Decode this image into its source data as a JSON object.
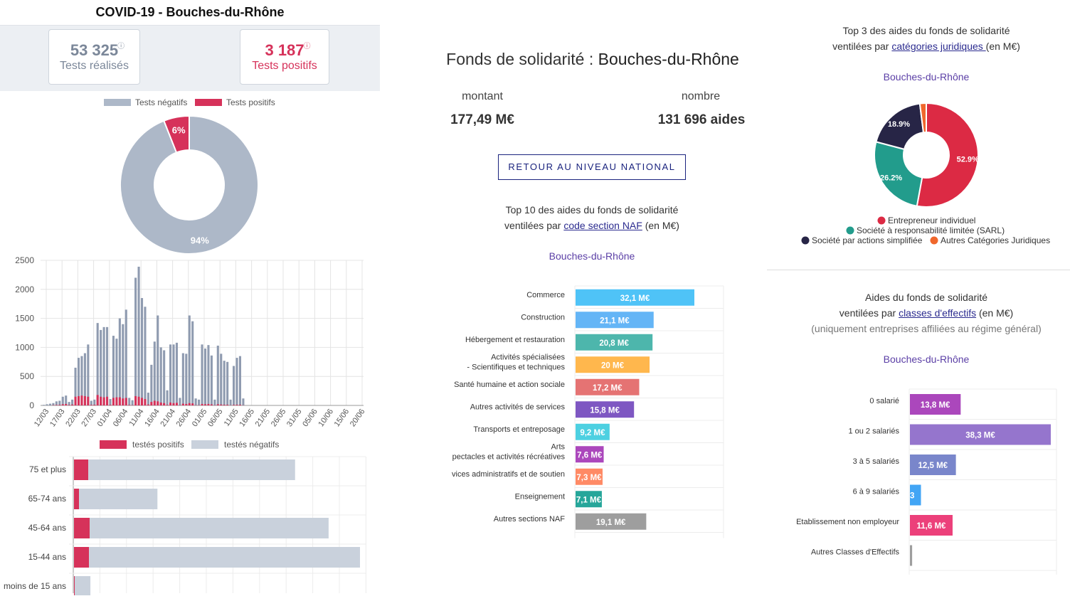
{
  "left": {
    "title": "COVID-19 - Bouches-du-Rhône",
    "kpi_tests": {
      "value": "53 325",
      "label": "Tests réalisés",
      "info": "ⓘ"
    },
    "kpi_positive": {
      "value": "3 187",
      "label": "Tests positifs",
      "info": "ⓘ"
    },
    "colors": {
      "neg": "#adb8c8",
      "pos": "#d6325a",
      "neg_light": "#c9d1dc"
    }
  },
  "middle": {
    "title_prefix": "Fonds de solidarité : ",
    "title_dept": "Bouches-du-Rhône",
    "montant_label": "montant",
    "montant_value": "177,49 M€",
    "nombre_label": "nombre",
    "nombre_value": "131 696 aides",
    "return_button": "RETOUR AU NIVEAU NATIONAL",
    "top10_line1": "Top 10 des aides du fonds de solidarité",
    "top10_line2_pre": "ventilées par ",
    "top10_link": "code section NAF",
    "top10_line2_post": " (en M€)",
    "dept_label": "Bouches-du-Rhône"
  },
  "right": {
    "top3_line1": "Top 3 des aides du fonds de solidarité",
    "top3_line2_pre": "ventilées par ",
    "top3_link": "catégories juridiques ",
    "top3_line2_post": "(en M€)",
    "dept_label_1": "Bouches-du-Rhône",
    "eff_line1": "Aides du fonds de solidarité",
    "eff_line2_pre": "ventilées par ",
    "eff_link": "classes d'effectifs",
    "eff_line2_post": " (en M€)",
    "eff_line3": "(uniquement entreprises affiliées au régime général)",
    "dept_label_2": "Bouches-du-Rhône"
  },
  "chart_data": [
    {
      "type": "pie",
      "id": "tests-donut",
      "legend": [
        "Tests négatifs",
        "Tests positifs"
      ],
      "values": [
        94,
        6
      ],
      "labels": [
        "94%",
        "6%"
      ],
      "colors": [
        "#adb8c8",
        "#d6325a"
      ]
    },
    {
      "type": "bar",
      "id": "daily-tests",
      "ylim": [
        0,
        2500
      ],
      "yticks": [
        "0",
        "500",
        "1000",
        "1500",
        "2000",
        "2500"
      ],
      "xticks": [
        "12/03",
        "17/03",
        "22/03",
        "27/03",
        "01/04",
        "06/04",
        "11/04",
        "16/04",
        "21/04",
        "26/04",
        "01/05",
        "06/05",
        "11/05",
        "16/05",
        "21/05",
        "26/05",
        "31/05",
        "05/06",
        "10/06",
        "15/06",
        "20/06"
      ],
      "series": [
        {
          "name": "Tests négatifs",
          "color": "#8f9bb0",
          "values": [
            10,
            20,
            30,
            40,
            70,
            80,
            150,
            170,
            60,
            100,
            650,
            820,
            850,
            900,
            1050,
            80,
            100,
            1420,
            1300,
            1350,
            1350,
            110,
            1200,
            1150,
            1500,
            1400,
            1650,
            130,
            90,
            2200,
            2390,
            1850,
            1700,
            220,
            700,
            1100,
            1550,
            1000,
            950,
            260,
            1050,
            1050,
            1080,
            130,
            900,
            890,
            1550,
            1450,
            120,
            100,
            1050,
            980,
            1040,
            860,
            100,
            1030,
            890,
            770,
            750,
            100,
            680,
            820,
            850,
            120
          ]
        },
        {
          "name": "Tests positifs",
          "color": "#d6325a",
          "values": [
            0,
            0,
            0,
            5,
            8,
            10,
            20,
            25,
            8,
            15,
            150,
            160,
            170,
            160,
            150,
            10,
            12,
            180,
            150,
            140,
            150,
            10,
            130,
            140,
            140,
            120,
            130,
            8,
            5,
            160,
            150,
            130,
            110,
            15,
            60,
            80,
            70,
            50,
            40,
            10,
            50,
            40,
            45,
            5,
            30,
            25,
            40,
            35,
            4,
            4,
            25,
            20,
            25,
            18,
            4,
            20,
            15,
            12,
            12,
            3,
            10,
            12,
            12,
            3
          ]
        }
      ]
    },
    {
      "type": "bar",
      "id": "age-tests",
      "legend": [
        "testés positifs",
        "testés négatifs"
      ],
      "categories": [
        "75 et plus",
        "65-74 ans",
        "45-64 ans",
        "15-44 ans",
        "moins de 15 ans"
      ],
      "series": [
        {
          "name": "testés positifs",
          "values": [
            20,
            7,
            22,
            21,
            1
          ],
          "color": "#d6325a"
        },
        {
          "name": "testés négatifs",
          "values": [
            290,
            110,
            335,
            380,
            22
          ],
          "color": "#c9d1dc"
        }
      ]
    },
    {
      "type": "bar",
      "id": "naf-top10",
      "categories": [
        [
          "Commerce"
        ],
        [
          "Construction"
        ],
        [
          "Hébergement et restauration"
        ],
        [
          "Activités spécialisées",
          "- Scientifiques et techniques"
        ],
        [
          "Santé humaine et action sociale"
        ],
        [
          "Autres activités de services"
        ],
        [
          "Transports et entreposage"
        ],
        [
          "Arts",
          "pectacles et activités récréatives"
        ],
        [
          "vices administratifs et de soutien"
        ],
        [
          "Enseignement"
        ],
        [
          "Autres sections NAF"
        ]
      ],
      "values": [
        32.1,
        21.1,
        20.8,
        20,
        17.2,
        15.8,
        9.2,
        7.6,
        7.3,
        7.1,
        19.1
      ],
      "labels": [
        "32,1 M€",
        "21,1 M€",
        "20,8 M€",
        "20 M€",
        "17,2 M€",
        "15,8 M€",
        "9,2 M€",
        "7,6 M€",
        "7,3 M€",
        "7,1 M€",
        "19,1 M€"
      ],
      "colors": [
        "#4fc3f7",
        "#64b5f6",
        "#4db6ac",
        "#ffb74d",
        "#e57373",
        "#7e57c2",
        "#4dd0e1",
        "#ab47bc",
        "#ff8a65",
        "#26a69a",
        "#9e9e9e"
      ]
    },
    {
      "type": "pie",
      "id": "juridique-donut",
      "values": [
        52.9,
        26.2,
        18.9,
        2.0
      ],
      "labels": [
        "52.9%",
        "26.2%",
        "18.9%",
        ""
      ],
      "legend": [
        "Entrepreneur individuel",
        "Société à responsabilité limitée (SARL)",
        "Société par actions simplifiée",
        "Autres Catégories Juridiques"
      ],
      "colors": [
        "#dc2a44",
        "#229c8c",
        "#272546",
        "#f0672c"
      ]
    },
    {
      "type": "bar",
      "id": "effectifs",
      "categories": [
        "0 salarié",
        "1 ou 2 salariés",
        "3 à 5 salariés",
        "6 à 9 salariés",
        "Etablissement non employeur",
        "Autres Classes d'Effectifs"
      ],
      "values": [
        13.8,
        38.3,
        12.5,
        3,
        11.6,
        0.6
      ],
      "labels": [
        "13,8 M€",
        "38,3 M€",
        "12,5 M€",
        "3",
        "11,6 M€",
        ""
      ],
      "colors": [
        "#ab47bc",
        "#9575cd",
        "#7986cb",
        "#42a5f5",
        "#ec407a",
        "#9e9e9e"
      ]
    }
  ]
}
